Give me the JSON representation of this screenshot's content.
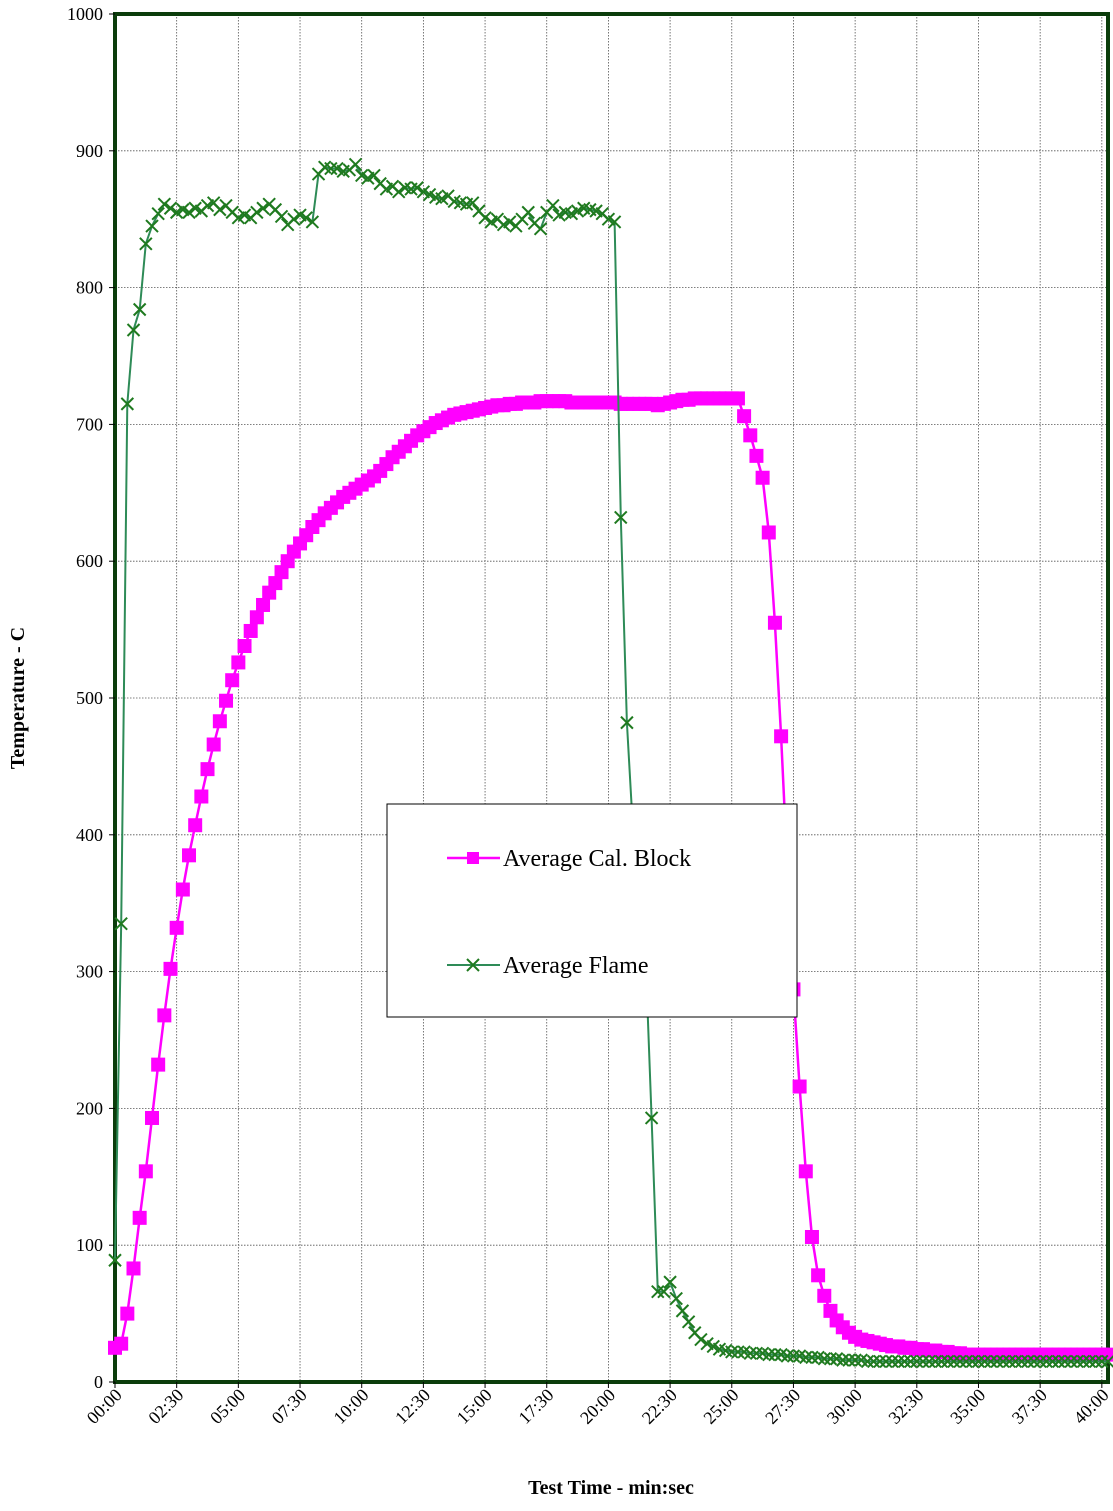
{
  "chart_data": {
    "type": "line",
    "title": "",
    "xlabel": "Test Time - min:sec",
    "ylabel": "Temperature - C",
    "ylim": [
      0,
      1000
    ],
    "xlim": [
      0,
      2415
    ],
    "y_ticks": [
      "0",
      "100",
      "200",
      "300",
      "400",
      "500",
      "600",
      "700",
      "800",
      "900",
      "1000"
    ],
    "x_ticks": [
      "00:00",
      "02:30",
      "05:00",
      "07:30",
      "10:00",
      "12:30",
      "15:00",
      "17:30",
      "20:00",
      "22:30",
      "25:00",
      "27:30",
      "30:00",
      "32:30",
      "35:00",
      "37:30",
      "40:00"
    ],
    "x_units": "seconds",
    "grid": true,
    "legend_position": "center",
    "series": [
      {
        "name": "Average Cal. Block",
        "color": "#ff00ff",
        "marker": "square",
        "x": [
          0,
          15,
          30,
          45,
          60,
          75,
          90,
          105,
          120,
          135,
          150,
          165,
          180,
          195,
          210,
          225,
          240,
          255,
          270,
          285,
          300,
          315,
          330,
          345,
          360,
          375,
          390,
          405,
          420,
          435,
          450,
          465,
          480,
          495,
          510,
          525,
          540,
          555,
          570,
          585,
          600,
          615,
          630,
          645,
          660,
          675,
          690,
          705,
          720,
          735,
          750,
          765,
          780,
          795,
          810,
          825,
          840,
          855,
          870,
          885,
          900,
          915,
          930,
          945,
          960,
          975,
          990,
          1005,
          1020,
          1035,
          1050,
          1065,
          1080,
          1095,
          1110,
          1125,
          1140,
          1155,
          1170,
          1185,
          1200,
          1215,
          1230,
          1245,
          1260,
          1275,
          1290,
          1305,
          1320,
          1335,
          1350,
          1365,
          1380,
          1395,
          1410,
          1425,
          1440,
          1455,
          1470,
          1485,
          1500,
          1515,
          1530,
          1545,
          1560,
          1575,
          1590,
          1605,
          1620,
          1635,
          1650,
          1665,
          1680,
          1695,
          1710,
          1725,
          1740,
          1755,
          1770,
          1785,
          1800,
          1815,
          1830,
          1845,
          1860,
          1875,
          1890,
          1905,
          1920,
          1935,
          1950,
          1965,
          1980,
          1995,
          2010,
          2025,
          2040,
          2055,
          2070,
          2085,
          2100,
          2115,
          2130,
          2145,
          2160,
          2175,
          2190,
          2205,
          2220,
          2235,
          2250,
          2265,
          2280,
          2295,
          2310,
          2325,
          2340,
          2355,
          2370,
          2385,
          2400,
          2415
        ],
        "values": [
          25,
          28,
          50,
          83,
          120,
          154,
          193,
          232,
          268,
          302,
          332,
          360,
          385,
          407,
          428,
          448,
          466,
          483,
          498,
          513,
          526,
          538,
          549,
          559,
          568,
          577,
          584,
          592,
          600,
          607,
          613,
          619,
          625,
          630,
          635,
          639,
          643,
          647,
          650,
          653,
          656,
          659,
          662,
          666,
          671,
          676,
          680,
          684,
          688,
          692,
          695,
          698,
          701,
          703,
          705,
          707,
          708,
          709,
          710,
          711,
          712,
          713,
          714,
          714,
          715,
          715,
          716,
          716,
          716,
          717,
          717,
          717,
          717,
          717,
          716,
          716,
          716,
          716,
          716,
          716,
          716,
          716,
          715,
          715,
          715,
          715,
          715,
          715,
          714,
          715,
          716,
          717,
          718,
          718,
          719,
          719,
          719,
          719,
          719,
          719,
          719,
          719,
          706,
          692,
          677,
          661,
          621,
          555,
          472,
          376,
          287,
          216,
          154,
          106,
          78,
          63,
          52,
          45,
          40,
          36,
          33,
          31,
          30,
          29,
          28,
          27,
          26,
          26,
          25,
          25,
          24,
          24,
          23,
          23,
          22,
          22,
          21,
          21,
          20,
          20,
          20,
          20,
          20,
          20,
          20,
          20,
          20,
          20,
          20,
          20,
          20,
          20,
          20,
          20,
          20,
          20,
          20,
          20,
          20,
          20,
          20,
          20
        ]
      },
      {
        "name": "Average Flame",
        "color": "#2e8b57",
        "marker": "x",
        "x": [
          0,
          15,
          30,
          45,
          60,
          75,
          90,
          105,
          120,
          135,
          150,
          165,
          180,
          195,
          210,
          225,
          240,
          255,
          270,
          285,
          300,
          315,
          330,
          345,
          360,
          375,
          390,
          405,
          420,
          435,
          450,
          465,
          480,
          495,
          510,
          525,
          540,
          555,
          570,
          585,
          600,
          615,
          630,
          645,
          660,
          675,
          690,
          705,
          720,
          735,
          750,
          765,
          780,
          795,
          810,
          825,
          840,
          855,
          870,
          885,
          900,
          915,
          930,
          945,
          960,
          975,
          990,
          1005,
          1020,
          1035,
          1050,
          1065,
          1080,
          1095,
          1110,
          1125,
          1140,
          1155,
          1170,
          1185,
          1200,
          1215,
          1230,
          1245,
          1260,
          1275,
          1290,
          1305,
          1320,
          1335,
          1350,
          1365,
          1380,
          1395,
          1410,
          1425,
          1440,
          1455,
          1470,
          1485,
          1500,
          1515,
          1530,
          1545,
          1560,
          1575,
          1590,
          1605,
          1620,
          1635,
          1650,
          1665,
          1680,
          1695,
          1710,
          1725,
          1740,
          1755,
          1770,
          1785,
          1800,
          1815,
          1830,
          1845,
          1860,
          1875,
          1890,
          1905,
          1920,
          1935,
          1950,
          1965,
          1980,
          1995,
          2010,
          2025,
          2040,
          2055,
          2070,
          2085,
          2100,
          2115,
          2130,
          2145,
          2160,
          2175,
          2190,
          2205,
          2220,
          2235,
          2250,
          2265,
          2280,
          2295,
          2310,
          2325,
          2340,
          2355,
          2370,
          2385,
          2400,
          2415
        ],
        "values": [
          89,
          335,
          715,
          769,
          784,
          832,
          845,
          854,
          861,
          858,
          855,
          857,
          855,
          858,
          856,
          860,
          862,
          857,
          860,
          855,
          851,
          853,
          851,
          855,
          858,
          861,
          857,
          852,
          846,
          850,
          853,
          851,
          848,
          883,
          888,
          887,
          887,
          885,
          886,
          890,
          882,
          880,
          882,
          876,
          872,
          874,
          870,
          873,
          872,
          873,
          870,
          868,
          866,
          865,
          867,
          863,
          862,
          861,
          862,
          856,
          851,
          848,
          850,
          846,
          848,
          845,
          850,
          855,
          847,
          843,
          855,
          860,
          853,
          855,
          854,
          856,
          858,
          857,
          856,
          854,
          850,
          848,
          632,
          482,
          402,
          354,
          314,
          193,
          66,
          66,
          73,
          61,
          52,
          44,
          36,
          31,
          28,
          26,
          24,
          23,
          22,
          22,
          22,
          21,
          21,
          21,
          20,
          20,
          20,
          19,
          19,
          19,
          18,
          18,
          18,
          17,
          17,
          17,
          16,
          16,
          16,
          16,
          15,
          15,
          15,
          15,
          15,
          15,
          15,
          15,
          15,
          15,
          15,
          15,
          15,
          15,
          15,
          15,
          15,
          15,
          15,
          15,
          15,
          15,
          15,
          15,
          15,
          15,
          15,
          15,
          15,
          15,
          15,
          15,
          15,
          15,
          15,
          15,
          15,
          15,
          15,
          15
        ]
      }
    ]
  }
}
